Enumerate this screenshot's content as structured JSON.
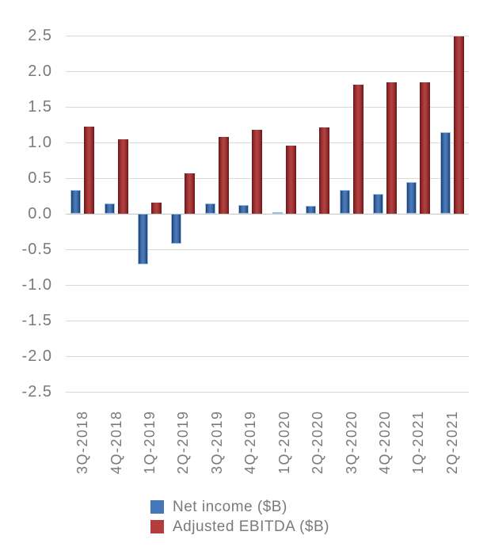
{
  "chart_data": {
    "type": "bar",
    "title": "",
    "xlabel": "",
    "ylabel": "",
    "categories": [
      "3Q-2018",
      "4Q-2018",
      "1Q-2019",
      "2Q-2019",
      "3Q-2019",
      "4Q-2019",
      "1Q-2020",
      "2Q-2020",
      "3Q-2020",
      "4Q-2020",
      "1Q-2021",
      "2Q-2021"
    ],
    "series": [
      {
        "name": "Net income ($B)",
        "values": [
          0.33,
          0.15,
          -0.71,
          -0.42,
          0.15,
          0.12,
          0.02,
          0.11,
          0.33,
          0.28,
          0.44,
          1.14
        ]
      },
      {
        "name": "Adjusted EBITDA ($B)",
        "values": [
          1.22,
          1.04,
          0.16,
          0.57,
          1.08,
          1.18,
          0.96,
          1.21,
          1.81,
          1.85,
          1.84,
          2.49
        ]
      }
    ],
    "ylim": [
      -2.5,
      2.5
    ],
    "ytick_step": 0.5,
    "yticks": [
      "2.5",
      "2.0",
      "1.5",
      "1.0",
      "0.5",
      "0.0",
      "-0.5",
      "-1.0",
      "-1.5",
      "-2.0",
      "-2.5"
    ],
    "grid": true,
    "legend_position": "bottom"
  },
  "colors": {
    "net_income_bar_center": "#4C7CBC",
    "net_income_bar_edge": "#1E3C66",
    "net_income_bar_border": "#9DC3E6",
    "ebitda_bar_center": "#B14444",
    "ebitda_bar_edge": "#6B1616",
    "legend_net_income_swatch": "#4377B7",
    "legend_ebitda_swatch": "#B33C3C",
    "gridline": "#D9D9D9",
    "axis_text": "#7A7A7A"
  }
}
